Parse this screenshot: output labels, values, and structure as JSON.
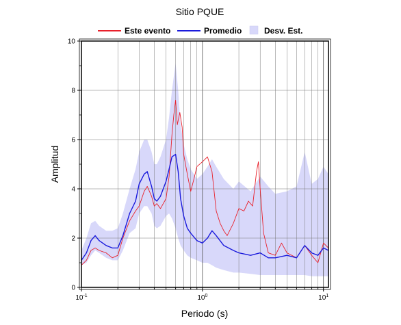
{
  "chart_data": {
    "type": "line",
    "title": "Sitio PQUE",
    "xlabel": "Periodo (s)",
    "ylabel": "Amplitud",
    "x_scale": "log",
    "xlim": [
      0.1,
      11
    ],
    "ylim": [
      0,
      10
    ],
    "y_ticks": [
      "0",
      "2",
      "4",
      "6",
      "8",
      "10"
    ],
    "x_ticks": [
      {
        "value": 0.1,
        "base": "10",
        "exp": "-1"
      },
      {
        "value": 1,
        "base": "10",
        "exp": "0"
      },
      {
        "value": 10,
        "base": "10",
        "exp": "1"
      }
    ],
    "grid": true,
    "legend_position": "top",
    "colors": {
      "event": "#e8202a",
      "mean": "#1a1adc",
      "band": "#d8d8fa"
    },
    "legend": {
      "event": "Este evento",
      "mean": "Promedio",
      "band": "Desv. Est."
    },
    "series": [
      {
        "key": "event",
        "name": "Este evento",
        "x": [
          0.1,
          0.11,
          0.12,
          0.13,
          0.14,
          0.16,
          0.18,
          0.2,
          0.22,
          0.25,
          0.28,
          0.3,
          0.33,
          0.35,
          0.38,
          0.4,
          0.42,
          0.45,
          0.5,
          0.53,
          0.56,
          0.58,
          0.6,
          0.62,
          0.65,
          0.68,
          0.7,
          0.75,
          0.8,
          0.85,
          0.9,
          1.0,
          1.1,
          1.2,
          1.3,
          1.4,
          1.5,
          1.6,
          1.8,
          2.0,
          2.2,
          2.4,
          2.6,
          2.8,
          2.9,
          3.0,
          3.2,
          3.5,
          4.0,
          4.5,
          5.0,
          6.0,
          7.0,
          8.0,
          9.0,
          10.0,
          11.0
        ],
        "y": [
          0.9,
          1.1,
          1.5,
          1.6,
          1.5,
          1.4,
          1.2,
          1.3,
          2.0,
          2.7,
          3.1,
          3.3,
          3.9,
          4.1,
          3.7,
          3.3,
          3.4,
          3.2,
          3.6,
          4.5,
          6.2,
          7.0,
          7.6,
          6.6,
          7.1,
          6.5,
          5.4,
          4.6,
          3.9,
          4.4,
          4.9,
          5.1,
          5.3,
          4.7,
          3.1,
          2.6,
          2.3,
          2.1,
          2.6,
          3.2,
          3.1,
          3.5,
          3.3,
          4.7,
          5.1,
          4.0,
          2.2,
          1.4,
          1.3,
          1.8,
          1.4,
          1.2,
          1.7,
          1.3,
          1.0,
          1.8,
          1.6
        ]
      },
      {
        "key": "mean",
        "name": "Promedio",
        "x": [
          0.1,
          0.11,
          0.12,
          0.13,
          0.14,
          0.16,
          0.18,
          0.2,
          0.22,
          0.25,
          0.28,
          0.3,
          0.33,
          0.35,
          0.38,
          0.4,
          0.42,
          0.45,
          0.5,
          0.53,
          0.56,
          0.6,
          0.63,
          0.66,
          0.7,
          0.75,
          0.8,
          0.9,
          1.0,
          1.1,
          1.2,
          1.3,
          1.5,
          1.8,
          2.0,
          2.5,
          3.0,
          3.5,
          4.0,
          5.0,
          6.0,
          7.0,
          8.0,
          9.0,
          10.0,
          11.0
        ],
        "y": [
          1.1,
          1.4,
          1.9,
          2.1,
          1.9,
          1.7,
          1.6,
          1.6,
          2.1,
          3.0,
          3.5,
          4.2,
          4.6,
          4.7,
          4.1,
          3.6,
          3.5,
          3.7,
          4.3,
          4.8,
          5.3,
          5.4,
          4.7,
          3.6,
          2.9,
          2.4,
          2.2,
          1.9,
          1.8,
          2.0,
          2.3,
          2.1,
          1.7,
          1.5,
          1.4,
          1.3,
          1.4,
          1.2,
          1.2,
          1.3,
          1.2,
          1.7,
          1.4,
          1.3,
          1.6,
          1.5
        ]
      }
    ],
    "band": {
      "x": [
        0.1,
        0.11,
        0.12,
        0.13,
        0.14,
        0.16,
        0.18,
        0.2,
        0.22,
        0.25,
        0.28,
        0.3,
        0.33,
        0.35,
        0.38,
        0.4,
        0.42,
        0.45,
        0.5,
        0.53,
        0.56,
        0.6,
        0.63,
        0.66,
        0.7,
        0.75,
        0.8,
        0.9,
        1.0,
        1.1,
        1.2,
        1.3,
        1.5,
        1.8,
        2.0,
        2.5,
        3.0,
        3.5,
        4.0,
        5.0,
        6.0,
        7.0,
        8.0,
        9.0,
        10.0,
        11.0
      ],
      "upper": [
        1.5,
        2.0,
        2.6,
        2.7,
        2.5,
        2.3,
        2.3,
        2.4,
        3.0,
        4.0,
        4.8,
        5.5,
        6.0,
        6.0,
        5.5,
        5.0,
        5.0,
        5.3,
        6.0,
        6.9,
        8.0,
        9.1,
        8.0,
        6.6,
        5.8,
        5.2,
        4.8,
        4.4,
        4.6,
        4.9,
        5.2,
        4.9,
        4.4,
        4.0,
        4.3,
        3.9,
        4.5,
        4.1,
        3.8,
        3.9,
        4.1,
        5.5,
        4.2,
        4.4,
        4.9,
        4.6
      ],
      "lower": [
        0.9,
        1.0,
        1.3,
        1.5,
        1.4,
        1.2,
        1.1,
        1.1,
        1.5,
        2.2,
        2.4,
        3.0,
        3.3,
        3.3,
        3.0,
        2.5,
        2.4,
        2.5,
        2.9,
        3.0,
        2.8,
        2.4,
        2.0,
        1.7,
        1.5,
        1.3,
        1.2,
        1.1,
        1.0,
        1.0,
        0.9,
        0.8,
        0.7,
        0.6,
        0.6,
        0.55,
        0.5,
        0.5,
        0.5,
        0.5,
        0.5,
        0.5,
        0.45,
        0.45,
        0.45,
        0.45
      ]
    }
  }
}
